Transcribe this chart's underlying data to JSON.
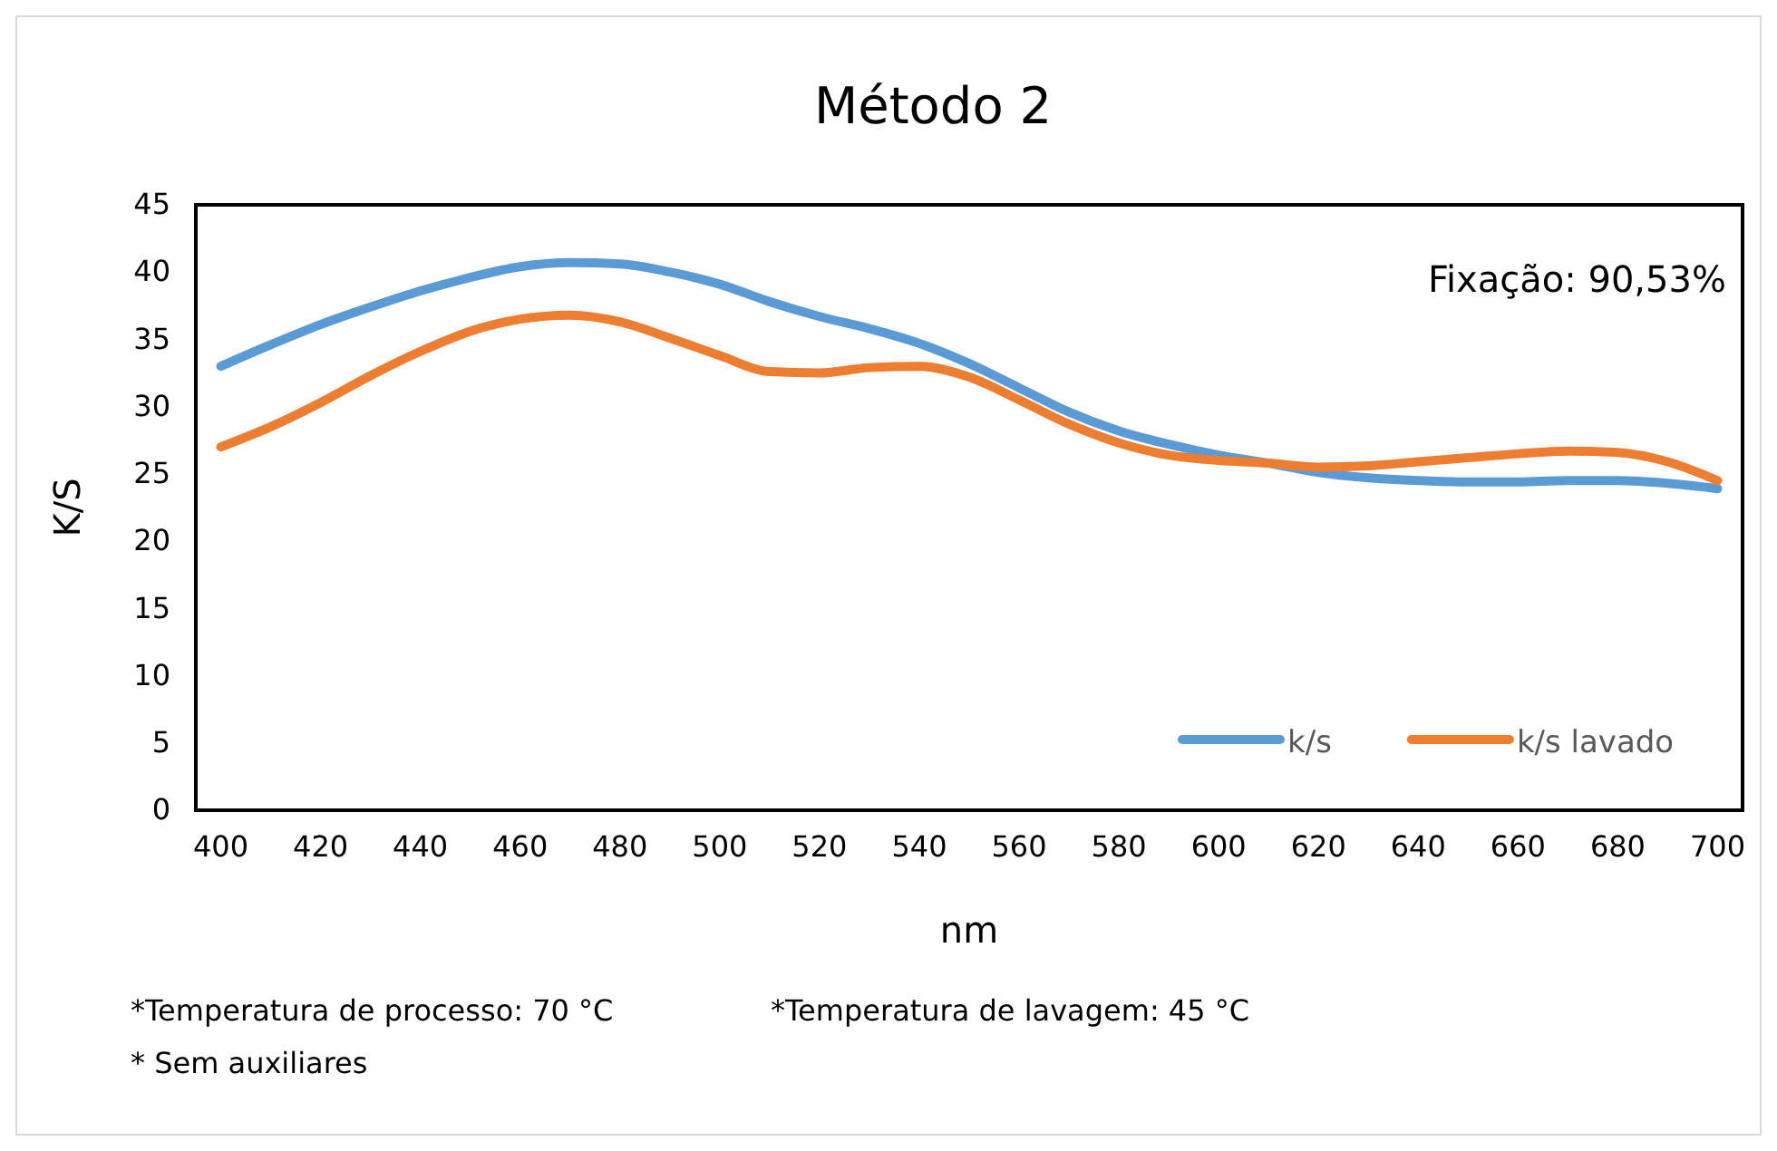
{
  "chart_data": {
    "type": "line",
    "title": "Método 2",
    "xlabel": "nm",
    "ylabel": "K/S",
    "x": [
      400,
      410,
      420,
      430,
      440,
      450,
      460,
      470,
      480,
      490,
      500,
      510,
      520,
      530,
      540,
      550,
      560,
      570,
      580,
      590,
      600,
      610,
      620,
      630,
      640,
      650,
      660,
      670,
      680,
      690,
      700
    ],
    "series": [
      {
        "name": "k/s",
        "color": "#5b9bd5",
        "values": [
          33,
          34.6,
          36.1,
          37.4,
          38.6,
          39.6,
          40.4,
          40.7,
          40.6,
          40.0,
          39.1,
          37.8,
          36.7,
          35.8,
          34.7,
          33.2,
          31.4,
          29.6,
          28.2,
          27.2,
          26.4,
          25.8,
          25.1,
          24.7,
          24.5,
          24.4,
          24.4,
          24.5,
          24.5,
          24.3,
          23.9
        ]
      },
      {
        "name": "k/s lavado",
        "color": "#ed7d31",
        "values": [
          27,
          28.5,
          30.3,
          32.3,
          34.1,
          35.6,
          36.5,
          36.8,
          36.3,
          35.1,
          33.8,
          32.6,
          32.5,
          32.9,
          33.0,
          32.2,
          30.5,
          28.7,
          27.3,
          26.4,
          26.0,
          25.8,
          25.5,
          25.6,
          25.9,
          26.2,
          26.5,
          26.7,
          26.6,
          25.9,
          24.5
        ]
      }
    ],
    "xlim": [
      395,
      705
    ],
    "xticks": [
      400,
      420,
      440,
      460,
      480,
      500,
      520,
      540,
      560,
      580,
      600,
      620,
      640,
      660,
      680,
      700
    ],
    "ylim": [
      0,
      45
    ],
    "yticks": [
      0,
      5,
      10,
      15,
      20,
      25,
      30,
      35,
      40,
      45
    ],
    "grid": false,
    "legend": "bottom right",
    "marker": "none",
    "line_style": "solid",
    "annotations": [
      "Fixação: 90,53%",
      "*Temperatura de processo: 70 °C",
      "*Temperatura de lavagem: 45 °C",
      "* Sem auxiliares"
    ]
  }
}
